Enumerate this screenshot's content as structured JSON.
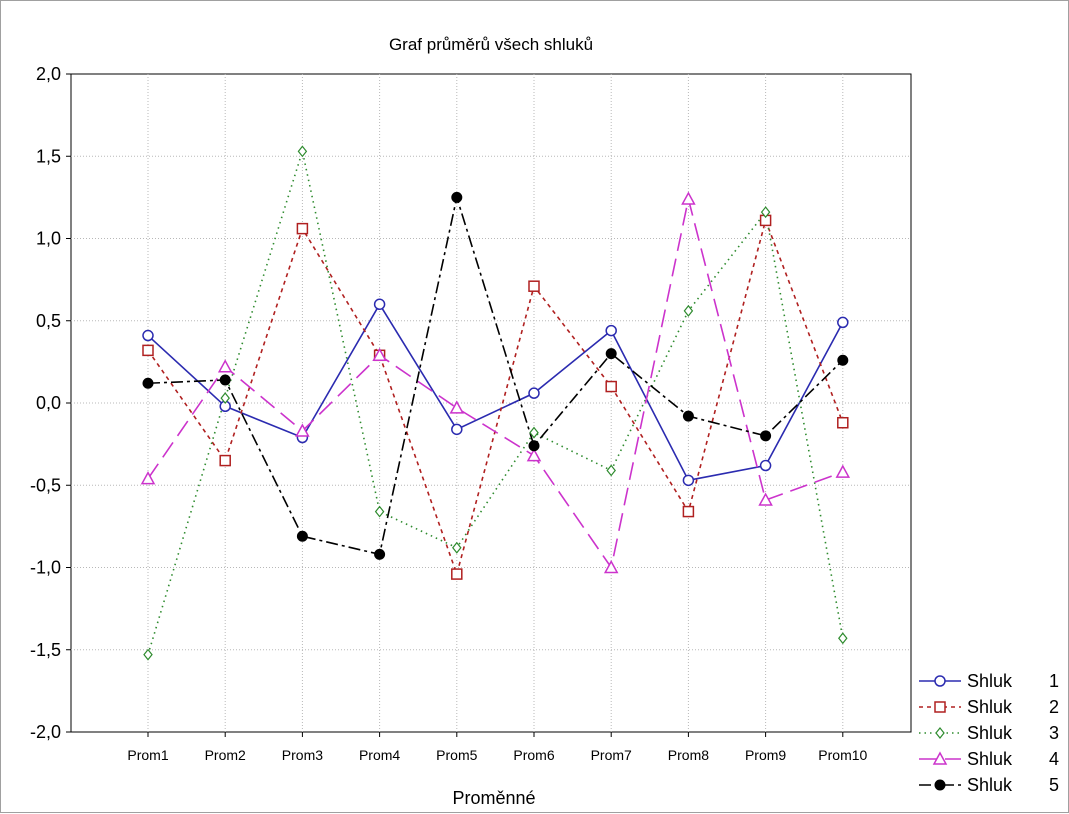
{
  "chart_data": {
    "type": "line",
    "title": "Graf průměrů všech shluků",
    "xlabel": "Proměnné",
    "ylabel": "",
    "categories": [
      "Prom1",
      "Prom2",
      "Prom3",
      "Prom4",
      "Prom5",
      "Prom6",
      "Prom7",
      "Prom8",
      "Prom9",
      "Prom10"
    ],
    "ylim": [
      -2.0,
      2.0
    ],
    "yticks": [
      2.0,
      1.5,
      1.0,
      0.5,
      0.0,
      -0.5,
      -1.0,
      -1.5,
      -2.0
    ],
    "ytick_labels": [
      "2,0",
      "1,5",
      "1,0",
      "0,5",
      "0,0",
      "-0,5",
      "-1,0",
      "-1,5",
      "-2,0"
    ],
    "grid": true,
    "legend_position": "bottom-right",
    "series": [
      {
        "name": "Shluk 1",
        "legend_label": "Shluk",
        "legend_number": "1",
        "color": "#2b2bb0",
        "dash": "",
        "marker": "circle",
        "values": [
          0.41,
          -0.02,
          -0.21,
          0.6,
          -0.16,
          0.06,
          0.44,
          -0.47,
          -0.38,
          0.49
        ]
      },
      {
        "name": "Shluk 2",
        "legend_label": "Shluk",
        "legend_number": "2",
        "color": "#b02020",
        "dash": "4,4",
        "marker": "square",
        "values": [
          0.32,
          -0.35,
          1.06,
          0.29,
          -1.04,
          0.71,
          0.1,
          -0.66,
          1.11,
          -0.12
        ]
      },
      {
        "name": "Shluk 3",
        "legend_label": "Shluk",
        "legend_number": "3",
        "color": "#2e8b2e",
        "dash": "1.5,4",
        "marker": "diamond",
        "values": [
          -1.53,
          0.03,
          1.53,
          -0.66,
          -0.88,
          -0.18,
          -0.41,
          0.56,
          1.16,
          -1.43
        ]
      },
      {
        "name": "Shluk 4",
        "legend_label": "Shluk",
        "legend_number": "4",
        "color": "#cc33cc",
        "dash": "18,8",
        "marker": "triangle",
        "values": [
          -0.46,
          0.22,
          -0.17,
          0.29,
          -0.03,
          -0.32,
          -1.0,
          1.24,
          -0.59,
          -0.42
        ]
      },
      {
        "name": "Shluk 5",
        "legend_label": "Shluk",
        "legend_number": "5",
        "color": "#000000",
        "dash": "12,4,3,4",
        "marker": "dot",
        "values": [
          0.12,
          0.14,
          -0.81,
          -0.92,
          1.25,
          -0.26,
          0.3,
          -0.08,
          -0.2,
          0.26
        ]
      }
    ]
  }
}
